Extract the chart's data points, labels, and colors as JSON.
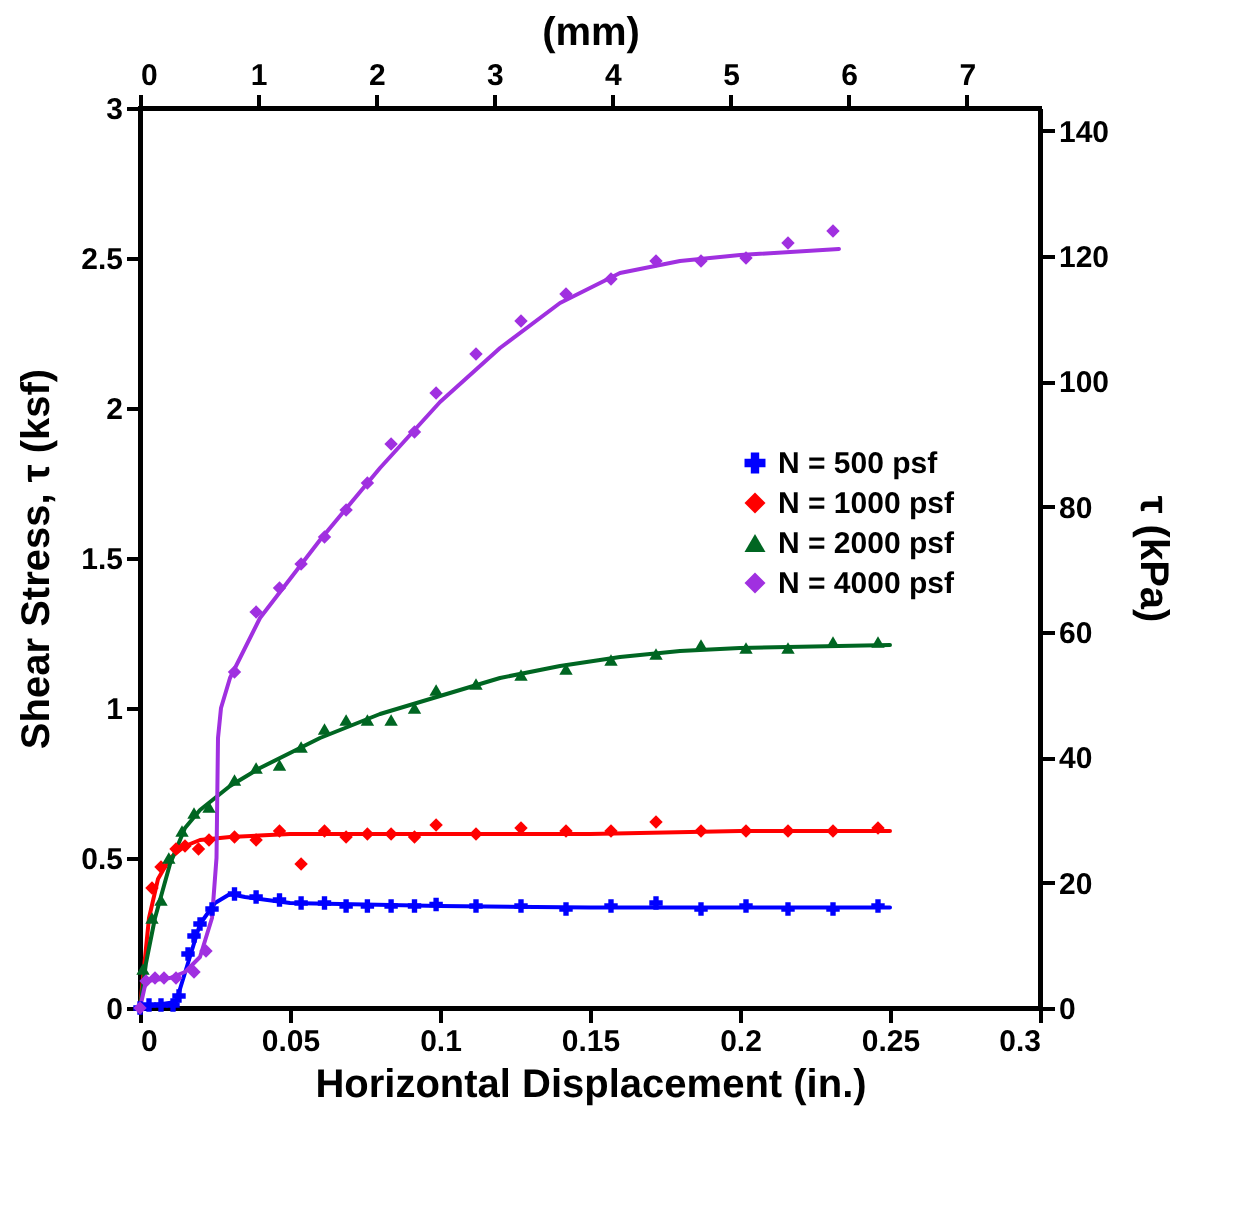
{
  "chart_data": {
    "type": "scatter",
    "xlabel": "Horizontal Displacement (in.)",
    "ylabel": "Shear Stress, τ (ksf)",
    "x2label": "(mm)",
    "y2label": "τ (kPa)",
    "xlim": [
      0,
      0.3
    ],
    "xticks": [
      0,
      0.05,
      0.1,
      0.15,
      0.2,
      0.25,
      0.3
    ],
    "ylim": [
      0,
      3
    ],
    "yticks": [
      0,
      0.5,
      1,
      1.5,
      2,
      2.5,
      3
    ],
    "x2lim": [
      0,
      7.62
    ],
    "x2ticks": [
      0,
      1,
      2,
      3,
      4,
      5,
      6,
      7
    ],
    "y2lim": [
      0,
      143.64
    ],
    "y2ticks": [
      0,
      20,
      40,
      60,
      80,
      100,
      120,
      140
    ],
    "legend": "right",
    "series": [
      {
        "name": "N = 500 psf",
        "color": "#0000ff",
        "marker": "cross",
        "x": [
          0,
          0.003,
          0.007,
          0.011,
          0.013,
          0.016,
          0.018,
          0.02,
          0.024,
          0.0315,
          0.0387,
          0.0465,
          0.0537,
          0.0615,
          0.0687,
          0.0758,
          0.0837,
          0.0915,
          0.0987,
          0.112,
          0.127,
          0.142,
          0.157,
          0.172,
          0.187,
          0.202,
          0.216,
          0.231,
          0.246
        ],
        "values": [
          0,
          0.01,
          0.01,
          0.01,
          0.04,
          0.18,
          0.24,
          0.28,
          0.33,
          0.38,
          0.37,
          0.36,
          0.35,
          0.35,
          0.34,
          0.34,
          0.34,
          0.34,
          0.345,
          0.34,
          0.34,
          0.33,
          0.34,
          0.35,
          0.33,
          0.34,
          0.33,
          0.33,
          0.34
        ]
      },
      {
        "name": "N = 1000 psf",
        "color": "#ff0000",
        "marker": "diamond",
        "x": [
          0.004,
          0.007,
          0.012,
          0.015,
          0.0195,
          0.023,
          0.0315,
          0.0387,
          0.0465,
          0.0537,
          0.0615,
          0.0687,
          0.0758,
          0.0837,
          0.0915,
          0.0987,
          0.112,
          0.127,
          0.142,
          0.157,
          0.172,
          0.187,
          0.202,
          0.216,
          0.231,
          0.246
        ],
        "values": [
          0.4,
          0.47,
          0.53,
          0.54,
          0.53,
          0.56,
          0.57,
          0.56,
          0.59,
          0.48,
          0.59,
          0.57,
          0.58,
          0.58,
          0.57,
          0.61,
          0.58,
          0.6,
          0.59,
          0.59,
          0.62,
          0.59,
          0.59,
          0.59,
          0.59,
          0.6
        ]
      },
      {
        "name": "N = 2000 psf",
        "color": "#006622",
        "marker": "triangle",
        "x": [
          0.001,
          0.004,
          0.007,
          0.0096,
          0.014,
          0.018,
          0.023,
          0.0315,
          0.0387,
          0.0465,
          0.0537,
          0.0615,
          0.0687,
          0.0758,
          0.0837,
          0.0915,
          0.0987,
          0.112,
          0.127,
          0.142,
          0.157,
          0.172,
          0.187,
          0.202,
          0.216,
          0.231,
          0.246
        ],
        "values": [
          0.13,
          0.3,
          0.36,
          0.5,
          0.59,
          0.65,
          0.67,
          0.76,
          0.8,
          0.81,
          0.87,
          0.93,
          0.96,
          0.96,
          0.96,
          1,
          1.06,
          1.08,
          1.11,
          1.13,
          1.16,
          1.18,
          1.21,
          1.2,
          1.2,
          1.22,
          1.22
        ]
      },
      {
        "name": "N = 4000 psf",
        "color": "#a030e0",
        "marker": "diamond",
        "x": [
          0,
          0.002,
          0.005,
          0.008,
          0.012,
          0.018,
          0.022,
          0.0315,
          0.0387,
          0.0465,
          0.0537,
          0.0615,
          0.0687,
          0.0758,
          0.0837,
          0.0915,
          0.0987,
          0.112,
          0.127,
          0.142,
          0.157,
          0.172,
          0.187,
          0.202,
          0.216,
          0.231
        ],
        "values": [
          0,
          0.09,
          0.1,
          0.1,
          0.1,
          0.12,
          0.19,
          1.12,
          1.32,
          1.4,
          1.48,
          1.57,
          1.66,
          1.75,
          1.88,
          1.92,
          2.05,
          2.18,
          2.29,
          2.38,
          2.43,
          2.49,
          2.49,
          2.5,
          2.55,
          2.59
        ]
      },
      {
        "type": "line",
        "color": "#0000ff",
        "marker": "none",
        "line_style": "solid",
        "x": [
          0,
          0.005,
          0.012,
          0.016,
          0.02,
          0.025,
          0.03,
          0.035,
          0.05,
          0.1,
          0.15,
          0.2,
          0.25
        ],
        "values": [
          0,
          0.01,
          0.02,
          0.15,
          0.28,
          0.35,
          0.38,
          0.37,
          0.35,
          0.34,
          0.335,
          0.335,
          0.335
        ]
      },
      {
        "type": "line",
        "color": "#ff0000",
        "marker": "none",
        "line_style": "solid",
        "x": [
          0,
          0.003,
          0.006,
          0.01,
          0.015,
          0.02,
          0.03,
          0.05,
          0.1,
          0.15,
          0.2,
          0.25
        ],
        "values": [
          0,
          0.3,
          0.43,
          0.5,
          0.54,
          0.56,
          0.57,
          0.58,
          0.58,
          0.58,
          0.59,
          0.59
        ]
      },
      {
        "type": "line",
        "color": "#006622",
        "marker": "none",
        "line_style": "solid",
        "x": [
          0,
          0.002,
          0.005,
          0.01,
          0.015,
          0.02,
          0.03,
          0.04,
          0.06,
          0.08,
          0.1,
          0.12,
          0.14,
          0.16,
          0.18,
          0.2,
          0.25
        ],
        "values": [
          0,
          0.15,
          0.3,
          0.48,
          0.6,
          0.66,
          0.74,
          0.8,
          0.9,
          0.98,
          1.04,
          1.1,
          1.14,
          1.17,
          1.19,
          1.2,
          1.21
        ]
      },
      {
        "type": "line",
        "color": "#a030e0",
        "marker": "none",
        "line_style": "solid",
        "x": [
          0,
          0.002,
          0.01,
          0.015,
          0.02,
          0.024,
          0.0255,
          0.026,
          0.027,
          0.03,
          0.04,
          0.06,
          0.08,
          0.1,
          0.12,
          0.14,
          0.16,
          0.18,
          0.2,
          0.233
        ],
        "values": [
          0,
          0.09,
          0.1,
          0.12,
          0.17,
          0.3,
          0.5,
          0.9,
          1,
          1.1,
          1.3,
          1.56,
          1.8,
          2.02,
          2.2,
          2.35,
          2.45,
          2.49,
          2.51,
          2.53
        ]
      }
    ]
  }
}
